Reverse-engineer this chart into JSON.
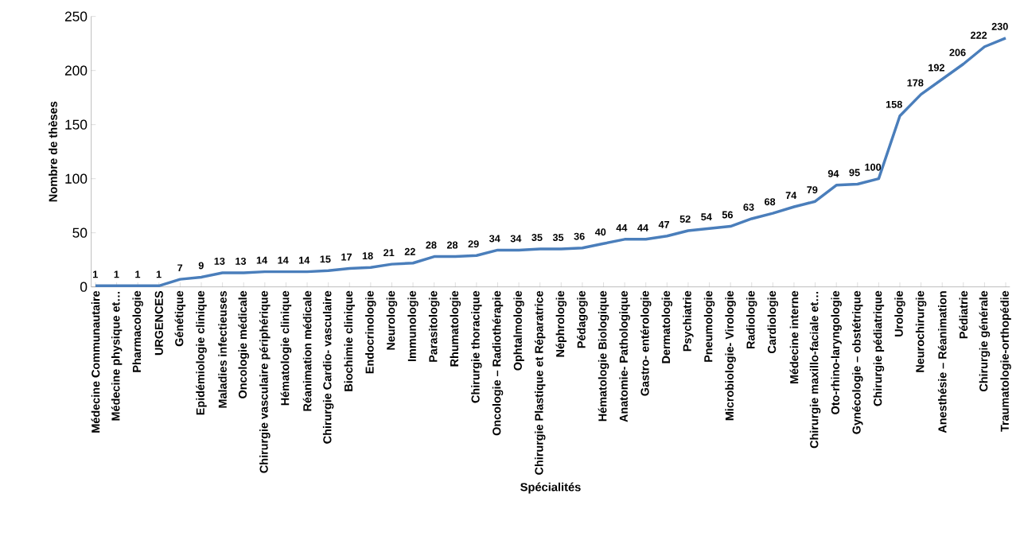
{
  "chart_data": {
    "type": "line",
    "xlabel": "Spécialités",
    "ylabel": "Nombre de thèses",
    "categories": [
      "Médecine Communautaire",
      "Médecine physique et…",
      "Pharmacologie",
      "URGENCES",
      "Génétique",
      "Epidémiologie clinique",
      "Maladies infectieuses",
      "Oncologie médicale",
      "Chirurgie vasculaire périphérique",
      "Hématologie clinique",
      "Réanimation médicale",
      "Chirurgie Cardio- vasculaire",
      "Biochimie clinique",
      "Endocrinologie",
      "Neurologie",
      "Immunologie",
      "Parasitologie",
      "Rhumatologie",
      "Chirurgie thoracique",
      "Oncologie – Radiothérapie",
      "Ophtalmologie",
      "Chirurgie Plastique et Réparatrice",
      "Néphrologie",
      "Pédagogie",
      "Hématologie Biologique",
      "Anatomie- Pathologique",
      "Gastro- entérologie",
      "Dermatologie",
      "Psychiatrie",
      "Pneumologie",
      "Microbiologie- Virologie",
      "Radiologie",
      "Cardiologie",
      "Médecine interne",
      "Chirurgie maxillo-faciale et…",
      "Oto-rhino-laryngologie",
      "Gynécologie – obstétrique",
      "Chirurgie pédiatrique",
      "Urologie",
      "Neurochirurgie",
      "Anesthésie – Réanimation",
      "Pédiatrie",
      "Chirurgie générale",
      "Traumatologie-orthopédie"
    ],
    "values": [
      1,
      1,
      1,
      1,
      7,
      9,
      13,
      13,
      14,
      14,
      14,
      15,
      17,
      18,
      21,
      22,
      28,
      28,
      29,
      34,
      34,
      35,
      35,
      36,
      40,
      44,
      44,
      47,
      52,
      54,
      56,
      63,
      68,
      74,
      79,
      94,
      95,
      100,
      158,
      178,
      192,
      206,
      222,
      230
    ],
    "color": "#4a7ebb",
    "ylim": [
      0,
      250
    ],
    "yticks": [
      0,
      50,
      100,
      150,
      200,
      250
    ],
    "data_labels": true,
    "marker": "none",
    "line_style": "solid"
  }
}
